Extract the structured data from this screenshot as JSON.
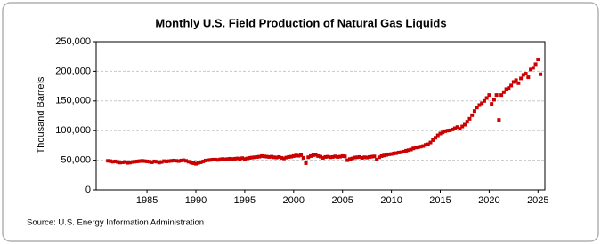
{
  "chart_data": {
    "type": "scatter",
    "title": "Monthly U.S. Field Production of Natural Gas Liquids",
    "y_label": "Thousand Barrels",
    "source": "Source: U.S. Energy Information Administration",
    "color": "#cc0000",
    "grid": true,
    "xlim": [
      1979.8,
      2025.7
    ],
    "xticks": [
      1985,
      1990,
      1995,
      2000,
      2005,
      2010,
      2015,
      2020,
      2025
    ],
    "ylim": [
      0,
      250000
    ],
    "yticks": [
      0,
      {
        "value": 50000,
        "label": "50,000"
      },
      {
        "value": 100000,
        "label": "100,000"
      },
      {
        "value": 150000,
        "label": "150,000"
      },
      {
        "value": 200000,
        "label": "200,000"
      },
      {
        "value": 250000,
        "label": "250,000"
      }
    ],
    "x": [
      1981,
      1981.25,
      1981.5,
      1981.75,
      1982,
      1982.25,
      1982.5,
      1982.75,
      1983,
      1983.25,
      1983.5,
      1983.75,
      1984,
      1984.25,
      1984.5,
      1984.75,
      1985,
      1985.25,
      1985.5,
      1985.75,
      1986,
      1986.25,
      1986.5,
      1986.75,
      1987,
      1987.25,
      1987.5,
      1987.75,
      1988,
      1988.25,
      1988.5,
      1988.75,
      1989,
      1989.25,
      1989.5,
      1989.75,
      1990,
      1990.25,
      1990.5,
      1990.75,
      1991,
      1991.25,
      1991.5,
      1991.75,
      1992,
      1992.25,
      1992.5,
      1992.75,
      1993,
      1993.25,
      1993.5,
      1993.75,
      1994,
      1994.25,
      1994.5,
      1994.75,
      1995,
      1995.25,
      1995.5,
      1995.75,
      1996,
      1996.25,
      1996.5,
      1996.75,
      1997,
      1997.25,
      1997.5,
      1997.75,
      1998,
      1998.25,
      1998.5,
      1998.75,
      1999,
      1999.25,
      1999.5,
      1999.75,
      2000,
      2000.25,
      2000.5,
      2000.75,
      2001,
      2001.25,
      2001.5,
      2001.75,
      2002,
      2002.25,
      2002.5,
      2002.75,
      2003,
      2003.25,
      2003.5,
      2003.75,
      2004,
      2004.25,
      2004.5,
      2004.75,
      2005,
      2005.25,
      2005.5,
      2005.75,
      2006,
      2006.25,
      2006.5,
      2006.75,
      2007,
      2007.25,
      2007.5,
      2007.75,
      2008,
      2008.25,
      2008.5,
      2008.75,
      2009,
      2009.25,
      2009.5,
      2009.75,
      2010,
      2010.25,
      2010.5,
      2010.75,
      2011,
      2011.25,
      2011.5,
      2011.75,
      2012,
      2012.25,
      2012.5,
      2012.75,
      2013,
      2013.25,
      2013.5,
      2013.75,
      2014,
      2014.25,
      2014.5,
      2014.75,
      2015,
      2015.25,
      2015.5,
      2015.75,
      2016,
      2016.25,
      2016.5,
      2016.75,
      2017,
      2017.25,
      2017.5,
      2017.75,
      2018,
      2018.25,
      2018.5,
      2018.75,
      2019,
      2019.25,
      2019.5,
      2019.75,
      2020,
      2020.25,
      2020.5,
      2020.75,
      2021,
      2021.25,
      2021.5,
      2021.75,
      2022,
      2022.25,
      2022.5,
      2022.75,
      2023,
      2023.25,
      2023.5,
      2023.75,
      2024,
      2024.25,
      2024.5,
      2024.75,
      2025,
      2025.25
    ],
    "values": [
      49000,
      48500,
      47500,
      48000,
      47000,
      46000,
      46500,
      47000,
      45500,
      46000,
      47000,
      47500,
      48000,
      48500,
      49000,
      48500,
      48000,
      47500,
      46500,
      48000,
      47500,
      46000,
      47000,
      48500,
      48000,
      48500,
      49000,
      49500,
      49000,
      48500,
      49500,
      50000,
      49000,
      47500,
      46000,
      45000,
      44000,
      45500,
      46500,
      48000,
      49500,
      50000,
      50500,
      51000,
      51000,
      50500,
      51500,
      52000,
      51500,
      52000,
      52500,
      52000,
      52500,
      53000,
      52000,
      53500,
      52000,
      53000,
      54000,
      54500,
      55000,
      55500,
      56000,
      57000,
      56500,
      56000,
      55500,
      56000,
      55000,
      54500,
      55500,
      54000,
      53000,
      54500,
      55500,
      56000,
      57000,
      58000,
      57500,
      58500,
      54000,
      45000,
      55000,
      57000,
      58500,
      59000,
      57000,
      56000,
      54000,
      55500,
      56000,
      55000,
      55500,
      56500,
      55500,
      56000,
      57000,
      56500,
      50000,
      52000,
      53000,
      54500,
      55000,
      55500,
      54000,
      55000,
      54500,
      55500,
      56000,
      56500,
      51000,
      55000,
      57000,
      58000,
      59000,
      60000,
      60500,
      61500,
      62000,
      63000,
      63500,
      64500,
      66000,
      67000,
      68000,
      70000,
      71500,
      72000,
      73000,
      74000,
      76000,
      77000,
      80000,
      84000,
      88000,
      92000,
      95000,
      97000,
      99000,
      100000,
      100500,
      102000,
      104000,
      106000,
      103000,
      107000,
      110000,
      115000,
      120000,
      126000,
      133000,
      139000,
      143000,
      146000,
      150000,
      155000,
      160000,
      145000,
      152000,
      160000,
      118000,
      160000,
      165000,
      170000,
      172000,
      176000,
      182000,
      185000,
      180000,
      188000,
      194000,
      196000,
      190000,
      203000,
      206000,
      212000,
      220000,
      195000
    ]
  }
}
